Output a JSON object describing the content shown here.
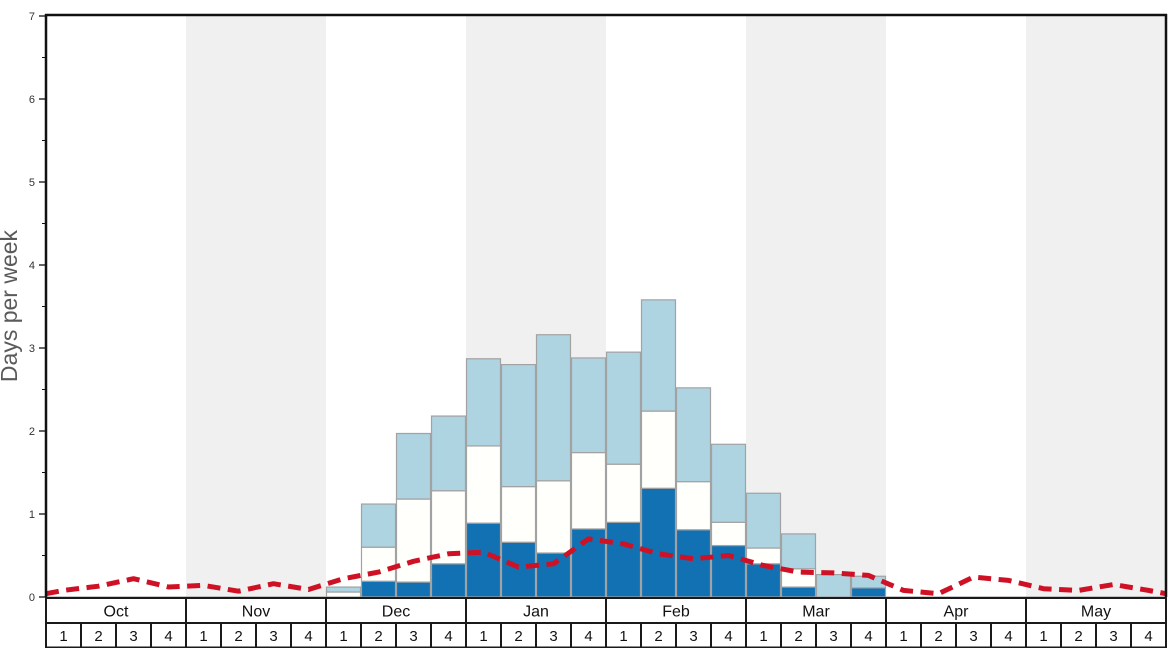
{
  "chart_data": {
    "type": "stacked-bar+line",
    "title": "",
    "ylabel": "Days per week",
    "ylim": [
      0,
      7
    ],
    "ytick_labels": [
      "0",
      "1",
      "2",
      "3",
      "4",
      "5",
      "6",
      "7"
    ],
    "yminor_step": 0.5,
    "grid": "off",
    "legend": "none",
    "months": [
      "Oct",
      "Nov",
      "Dec",
      "Jan",
      "Feb",
      "Mar",
      "Apr",
      "May"
    ],
    "week_labels": [
      "1",
      "2",
      "3",
      "4"
    ],
    "shaded_month_indices": [
      1,
      3,
      5,
      7
    ],
    "categories": [
      "Oct-1",
      "Oct-2",
      "Oct-3",
      "Oct-4",
      "Nov-1",
      "Nov-2",
      "Nov-3",
      "Nov-4",
      "Dec-1",
      "Dec-2",
      "Dec-3",
      "Dec-4",
      "Jan-1",
      "Jan-2",
      "Jan-3",
      "Jan-4",
      "Feb-1",
      "Feb-2",
      "Feb-3",
      "Feb-4",
      "Mar-1",
      "Mar-2",
      "Mar-3",
      "Mar-4",
      "Apr-1",
      "Apr-2",
      "Apr-3",
      "Apr-4",
      "May-1",
      "May-2",
      "May-3",
      "May-4"
    ],
    "stacked_series": [
      {
        "name": "dark-blue-days",
        "color": "#1171b2",
        "values": [
          0,
          0,
          0,
          0,
          0,
          0,
          0,
          0,
          0,
          0.19,
          0.18,
          0.4,
          0.89,
          0.66,
          0.53,
          0.82,
          0.9,
          1.31,
          0.81,
          0.62,
          0.4,
          0.12,
          0,
          0.11,
          0,
          0,
          0,
          0,
          0,
          0,
          0,
          0
        ]
      },
      {
        "name": "white-days",
        "color": "#fffffb",
        "values": [
          0,
          0,
          0,
          0,
          0,
          0,
          0,
          0,
          0.06,
          0.41,
          1.0,
          0.88,
          0.93,
          0.67,
          0.87,
          0.92,
          0.7,
          0.93,
          0.58,
          0.28,
          0.19,
          0.22,
          0,
          0,
          0,
          0,
          0,
          0,
          0,
          0,
          0,
          0
        ]
      },
      {
        "name": "light-blue-days",
        "color": "#aed3e1",
        "values": [
          0,
          0,
          0,
          0,
          0,
          0,
          0,
          0,
          0.06,
          0.52,
          0.79,
          0.9,
          1.05,
          1.47,
          1.76,
          1.14,
          1.35,
          1.34,
          1.13,
          0.94,
          0.66,
          0.42,
          0.27,
          0.14,
          0,
          0,
          0,
          0,
          0,
          0,
          0,
          0
        ]
      }
    ],
    "line_series": {
      "name": "red-dashed-average-line",
      "color": "#cf1125",
      "edge_start": 0.04,
      "edge_end": 0.04,
      "values": [
        0.08,
        0.13,
        0.22,
        0.12,
        0.14,
        0.07,
        0.16,
        0.09,
        0.22,
        0.3,
        0.43,
        0.52,
        0.54,
        0.36,
        0.4,
        0.7,
        0.64,
        0.52,
        0.46,
        0.5,
        0.38,
        0.3,
        0.29,
        0.26,
        0.08,
        0.04,
        0.24,
        0.2,
        0.1,
        0.08,
        0.15,
        0.08
      ]
    },
    "colors": {
      "band_gray": "#f0f0f0",
      "bar_border": "#a2a2a2",
      "axis_line": "#111111",
      "zero_line": "#909090",
      "table_border": "#1a1a1a",
      "table_text": "#111111",
      "tick_text": "#333333",
      "ylabel_text": "#5a5a5a",
      "plot_bg": "#ffffff"
    }
  }
}
